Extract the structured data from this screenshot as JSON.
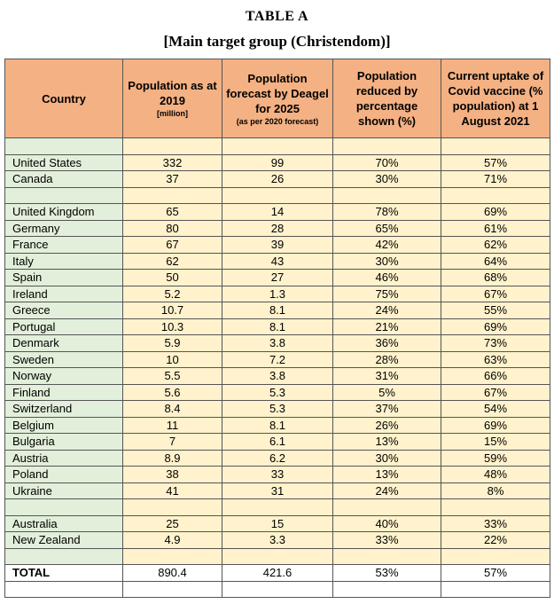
{
  "header": {
    "title": "TABLE A",
    "subtitle": "[Main target group (Christendom)]"
  },
  "table": {
    "columns": [
      {
        "label": "Country"
      },
      {
        "label": "Population as at 2019",
        "note": "[million]"
      },
      {
        "label": "Population forecast by Deagel for 2025",
        "note": "(as per 2020 forecast)"
      },
      {
        "label": "Population reduced by percentage shown (%)"
      },
      {
        "label": "Current uptake of Covid vaccine (% population) at 1 August 2021"
      }
    ],
    "groups": [
      [
        [
          "United States",
          "332",
          "99",
          "70%",
          "57%"
        ],
        [
          "Canada",
          "37",
          "26",
          "30%",
          "71%"
        ]
      ],
      [
        [
          "United Kingdom",
          "65",
          "14",
          "78%",
          "69%"
        ],
        [
          "Germany",
          "80",
          "28",
          "65%",
          "61%"
        ],
        [
          "France",
          "67",
          "39",
          "42%",
          "62%"
        ],
        [
          "Italy",
          "62",
          "43",
          "30%",
          "64%"
        ],
        [
          "Spain",
          "50",
          "27",
          "46%",
          "68%"
        ],
        [
          "Ireland",
          "5.2",
          "1.3",
          "75%",
          "67%"
        ],
        [
          "Greece",
          "10.7",
          "8.1",
          "24%",
          "55%"
        ],
        [
          "Portugal",
          "10.3",
          "8.1",
          "21%",
          "69%"
        ],
        [
          "Denmark",
          "5.9",
          "3.8",
          "36%",
          "73%"
        ],
        [
          "Sweden",
          "10",
          "7.2",
          "28%",
          "63%"
        ],
        [
          "Norway",
          "5.5",
          "3.8",
          "31%",
          "66%"
        ],
        [
          "Finland",
          "5.6",
          "5.3",
          "5%",
          "67%"
        ],
        [
          "Switzerland",
          "8.4",
          "5.3",
          "37%",
          "54%"
        ],
        [
          "Belgium",
          "11",
          "8.1",
          "26%",
          "69%"
        ],
        [
          "Bulgaria",
          "7",
          "6.1",
          "13%",
          "15%"
        ],
        [
          "Austria",
          "8.9",
          "6.2",
          "30%",
          "59%"
        ],
        [
          "Poland",
          "38",
          "33",
          "13%",
          "48%"
        ],
        [
          "Ukraine",
          "41",
          "31",
          "24%",
          "8%"
        ]
      ],
      [
        [
          "Australia",
          "25",
          "15",
          "40%",
          "33%"
        ],
        [
          "New Zealand",
          "4.9",
          "3.3",
          "33%",
          "22%"
        ]
      ]
    ],
    "total": [
      "TOTAL",
      "890.4",
      "421.6",
      "53%",
      "57%"
    ]
  }
}
